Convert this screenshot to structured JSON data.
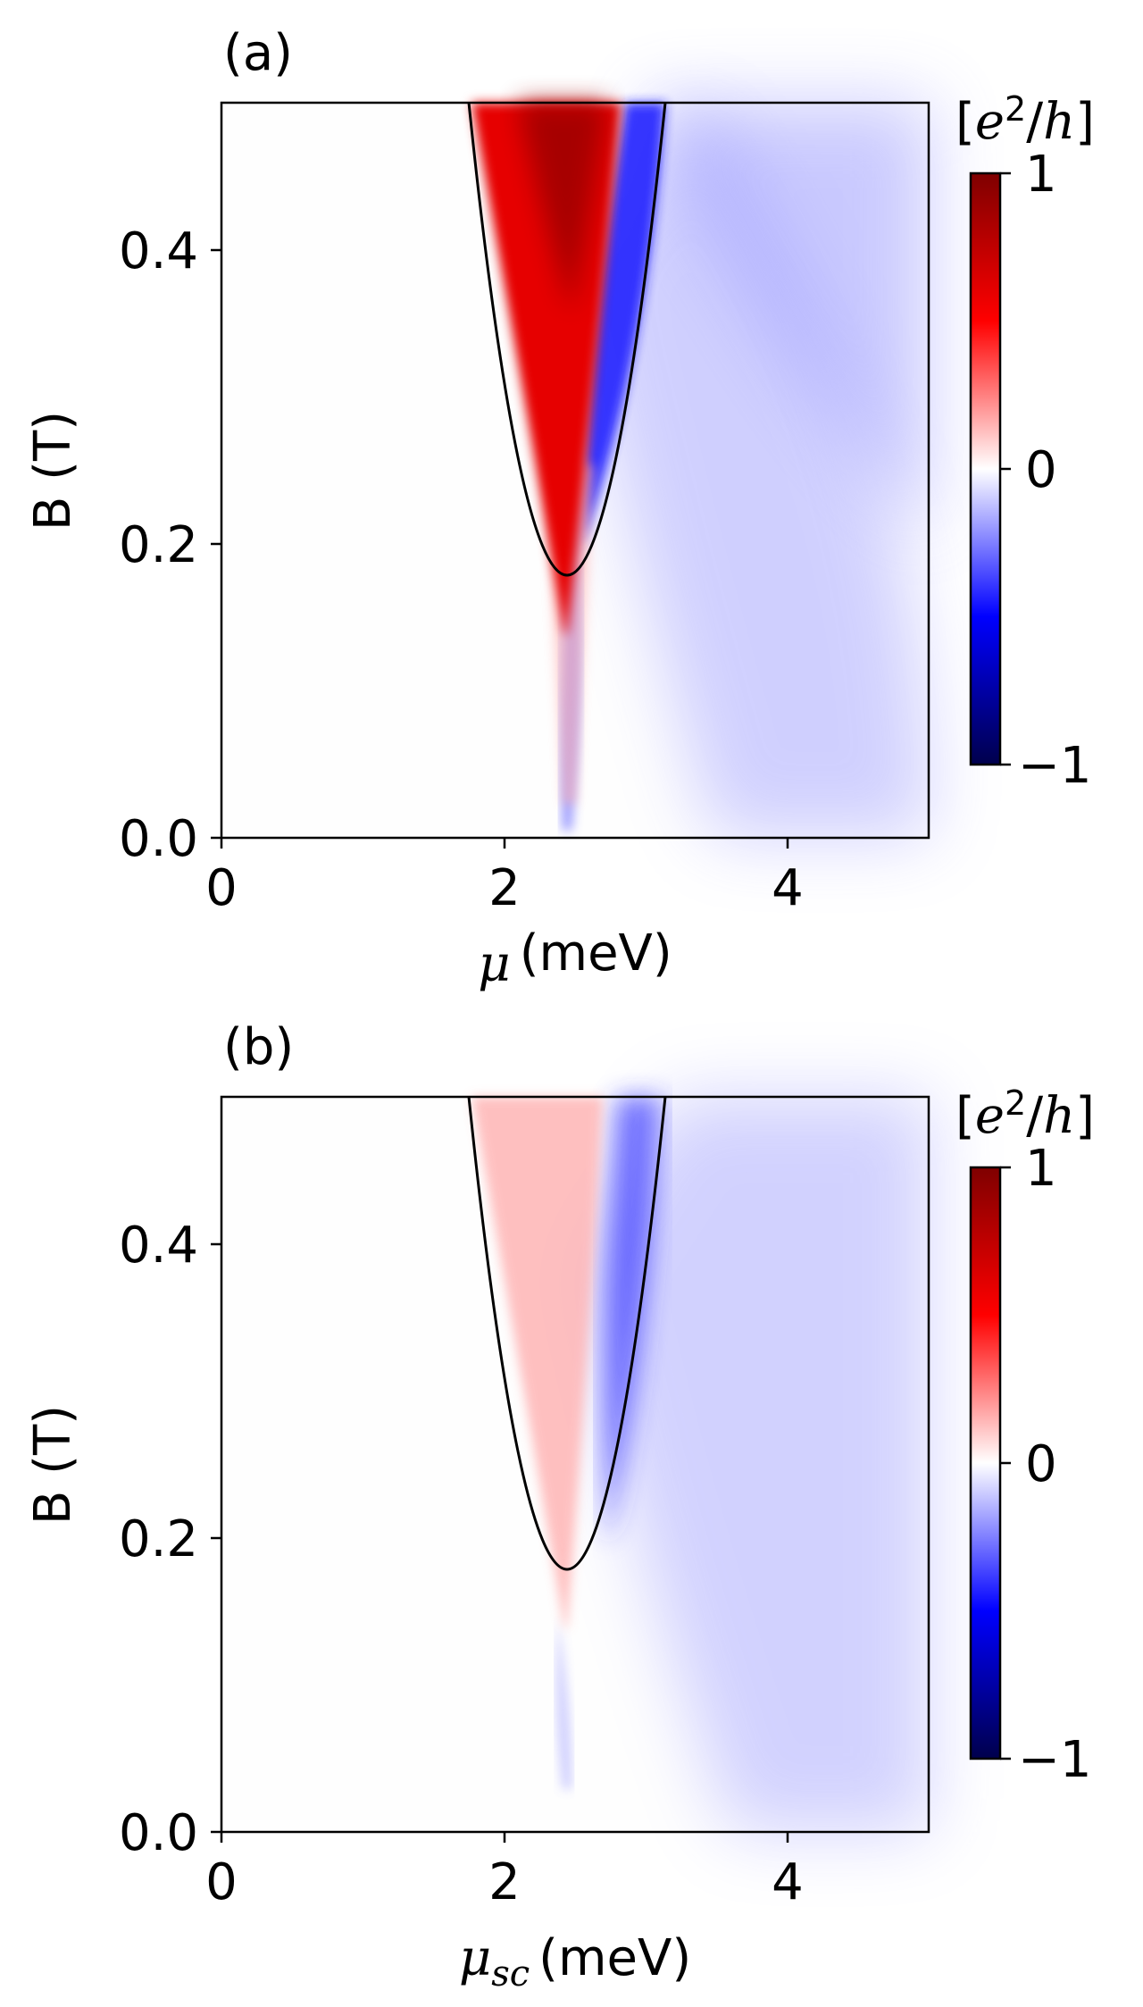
{
  "chart_data": [
    {
      "type": "heatmap",
      "panel_label": "(a)",
      "xlabel_symbol": "μ",
      "xlabel_sub": "",
      "xlabel_units": "(meV)",
      "ylabel": "B (T)",
      "xlim": [
        0,
        5
      ],
      "ylim": [
        0,
        0.5
      ],
      "xticks": [
        0,
        2,
        4
      ],
      "xtick_labels": [
        "0",
        "2",
        "4"
      ],
      "yticks": [
        0.0,
        0.2,
        0.4
      ],
      "ytick_labels": [
        "0.0",
        "0.2",
        "0.4"
      ],
      "colorbar": {
        "label": "[e²/h]",
        "label_parts": [
          "[",
          "e",
          "2",
          "/",
          "h",
          "]"
        ],
        "range": [
          -1,
          1
        ],
        "ticks": [
          1,
          0,
          -1
        ],
        "tick_labels": [
          "1",
          "0",
          "−1"
        ],
        "colormap": "seismic"
      },
      "boundary_curve": {
        "color": "#000000",
        "vertex": [
          2.45,
          0.14
        ],
        "points": [
          [
            1.75,
            0.5
          ],
          [
            1.85,
            0.43
          ],
          [
            2.0,
            0.32
          ],
          [
            2.2,
            0.2
          ],
          [
            2.45,
            0.14
          ],
          [
            2.7,
            0.2
          ],
          [
            2.9,
            0.32
          ],
          [
            3.03,
            0.43
          ],
          [
            3.15,
            0.5
          ]
        ]
      },
      "regions": [
        {
          "description": "positive lobe",
          "value_peak": 0.85,
          "x_range_at_top": [
            1.75,
            2.8
          ]
        },
        {
          "description": "negative band",
          "value_peak": -0.85,
          "x_range_at_top": [
            2.8,
            3.15
          ]
        },
        {
          "description": "outer tail",
          "value": -0.15,
          "x_range": [
            3.0,
            5.0
          ]
        }
      ]
    },
    {
      "type": "heatmap",
      "panel_label": "(b)",
      "xlabel_symbol": "μ",
      "xlabel_sub": "sc",
      "xlabel_units": "(meV)",
      "ylabel": "B (T)",
      "xlim": [
        0,
        5
      ],
      "ylim": [
        0,
        0.5
      ],
      "xticks": [
        0,
        2,
        4
      ],
      "xtick_labels": [
        "0",
        "2",
        "4"
      ],
      "yticks": [
        0.0,
        0.2,
        0.4
      ],
      "ytick_labels": [
        "0.0",
        "0.2",
        "0.4"
      ],
      "colorbar": {
        "label": "[e²/h]",
        "label_parts": [
          "[",
          "e",
          "2",
          "/",
          "h",
          "]"
        ],
        "range": [
          -1,
          1
        ],
        "ticks": [
          1,
          0,
          -1
        ],
        "tick_labels": [
          "1",
          "0",
          "−1"
        ],
        "colormap": "seismic"
      },
      "boundary_curve": {
        "color": "#000000",
        "vertex": [
          2.45,
          0.14
        ],
        "points": [
          [
            1.75,
            0.5
          ],
          [
            1.85,
            0.43
          ],
          [
            2.0,
            0.32
          ],
          [
            2.2,
            0.2
          ],
          [
            2.45,
            0.14
          ],
          [
            2.7,
            0.2
          ],
          [
            2.9,
            0.32
          ],
          [
            3.03,
            0.43
          ],
          [
            3.15,
            0.5
          ]
        ]
      },
      "regions": [
        {
          "description": "positive lobe",
          "value_peak": 0.2,
          "x_range_at_top": [
            1.75,
            2.65
          ]
        },
        {
          "description": "negative band",
          "value_peak": -0.5,
          "x_range_at_top": [
            2.75,
            3.15
          ]
        },
        {
          "description": "outer tail",
          "value": -0.2,
          "x_range": [
            3.0,
            5.0
          ]
        }
      ]
    }
  ]
}
